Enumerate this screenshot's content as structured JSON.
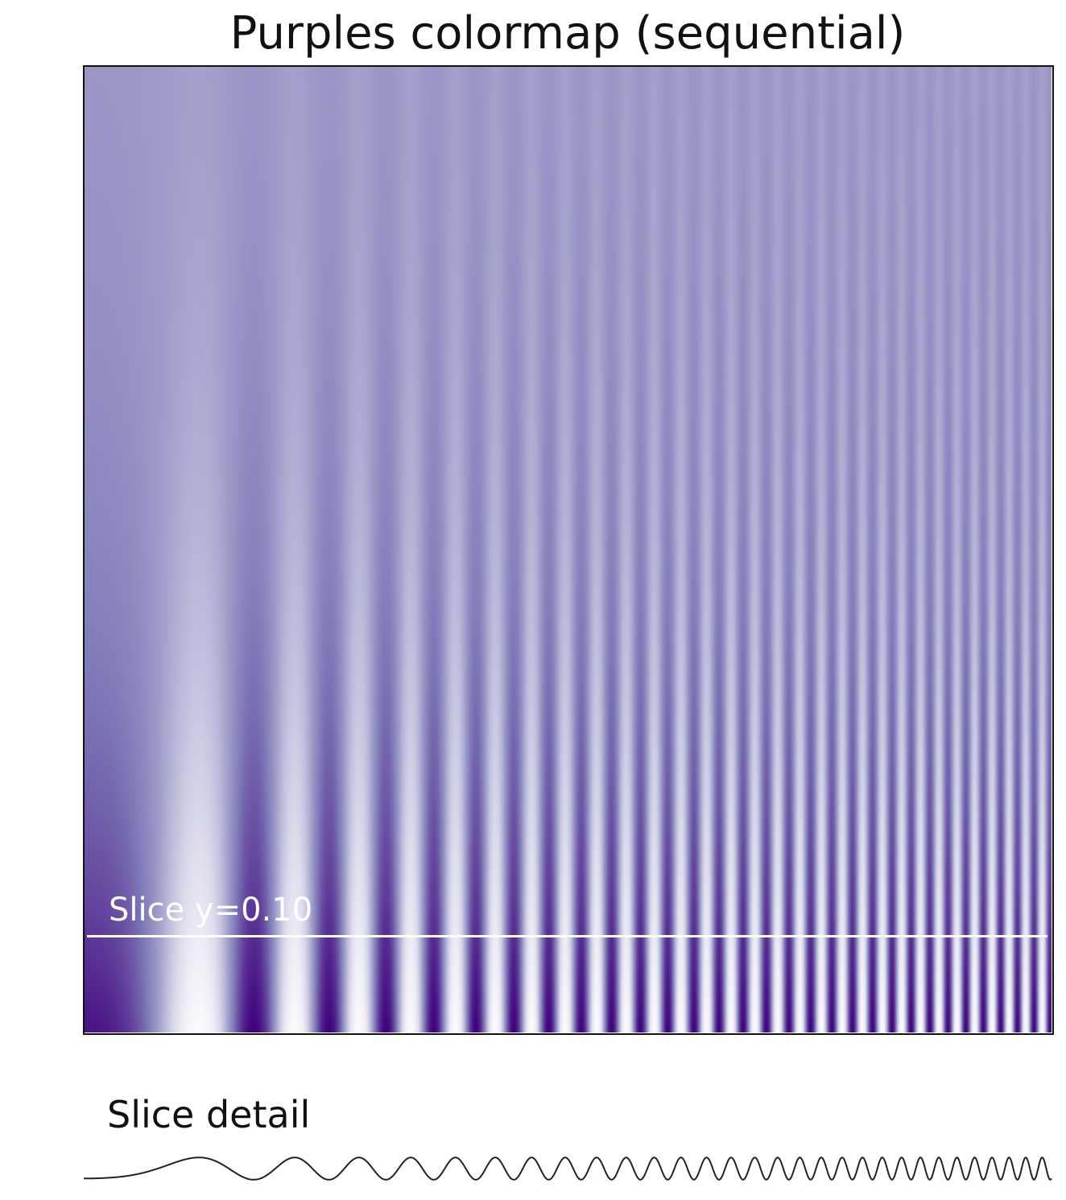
{
  "chart_data": [
    {
      "type": "heatmap",
      "title": "Purples colormap (sequential)",
      "colormap": "Purples",
      "frequency_sweep": "chirp, frequency increasing left to right",
      "amplitude_profile": "oscillation strongest at bottom, fading to uniform mid-purple at top",
      "xlim": [
        0,
        1
      ],
      "ylim": [
        0,
        1
      ],
      "ticks": "none",
      "annotation": {
        "text": "Slice y=0.10",
        "y": 0.1,
        "color": "#ffffff"
      },
      "colors": {
        "low": "#fcfbfd",
        "mid": "#9e9ac8",
        "high": "#3f007d"
      }
    },
    {
      "type": "line",
      "title": "Slice detail",
      "slice_y": 0.1,
      "line_color": "#222222"
    }
  ]
}
